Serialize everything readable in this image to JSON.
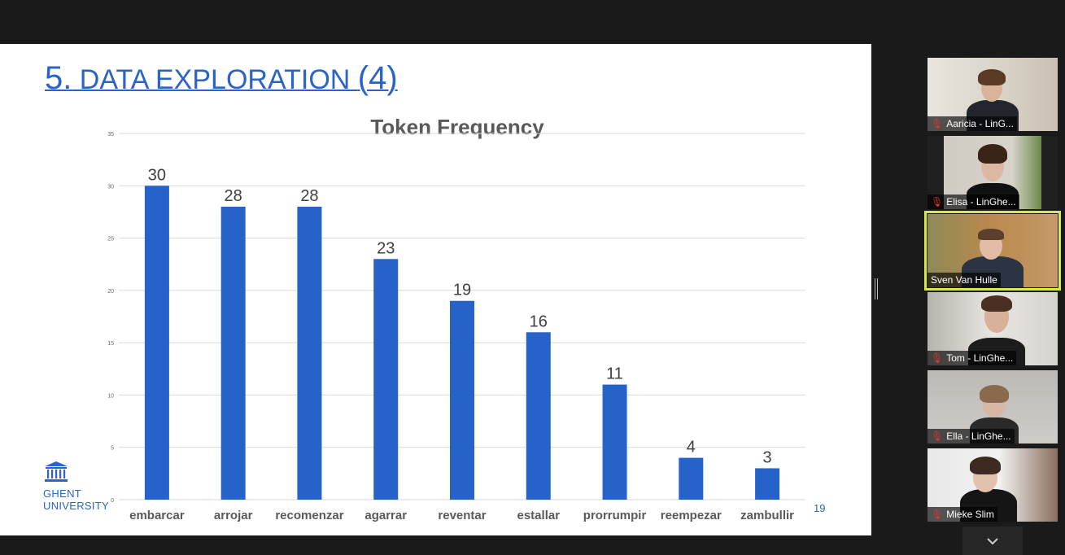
{
  "slide": {
    "title_number": "5.",
    "title_main": " DATA EXPLORATION ",
    "title_paren": "(4)",
    "page_number": "19",
    "logo_line1": "GHENT",
    "logo_line2": "UNIVERSITY"
  },
  "chart_data": {
    "type": "bar",
    "title": "Token Frequency",
    "xlabel": "",
    "ylabel": "",
    "categories": [
      "embarcar",
      "arrojar",
      "recomenzar",
      "agarrar",
      "reventar",
      "estallar",
      "prorrumpir",
      "reempezar",
      "zambullir"
    ],
    "values": [
      30,
      28,
      28,
      23,
      19,
      16,
      11,
      4,
      3
    ],
    "ylim": [
      0,
      35
    ],
    "yticks": [
      0,
      5,
      10,
      15,
      20,
      25,
      30,
      35
    ],
    "grid": true,
    "legend": "none",
    "bar_color": "#2563c9"
  },
  "participants": [
    {
      "name": "Aaricia - LinG...",
      "muted": true,
      "active": false
    },
    {
      "name": "Elisa - LinGhe...",
      "muted": true,
      "active": false
    },
    {
      "name": "Sven Van Hulle",
      "muted": false,
      "active": true
    },
    {
      "name": "Tom - LinGhe...",
      "muted": true,
      "active": false
    },
    {
      "name": "Ella - LinGhe...",
      "muted": true,
      "active": false
    },
    {
      "name": "Mieke Slim",
      "muted": true,
      "active": false
    }
  ],
  "icons": {
    "muted": "muted-mic-icon",
    "scroll": "chevron-down-icon",
    "logo": "university-building-icon"
  },
  "colors": {
    "accent": "#2a64c9",
    "active_speaker": "#d8e84a",
    "muted": "#e03434"
  }
}
